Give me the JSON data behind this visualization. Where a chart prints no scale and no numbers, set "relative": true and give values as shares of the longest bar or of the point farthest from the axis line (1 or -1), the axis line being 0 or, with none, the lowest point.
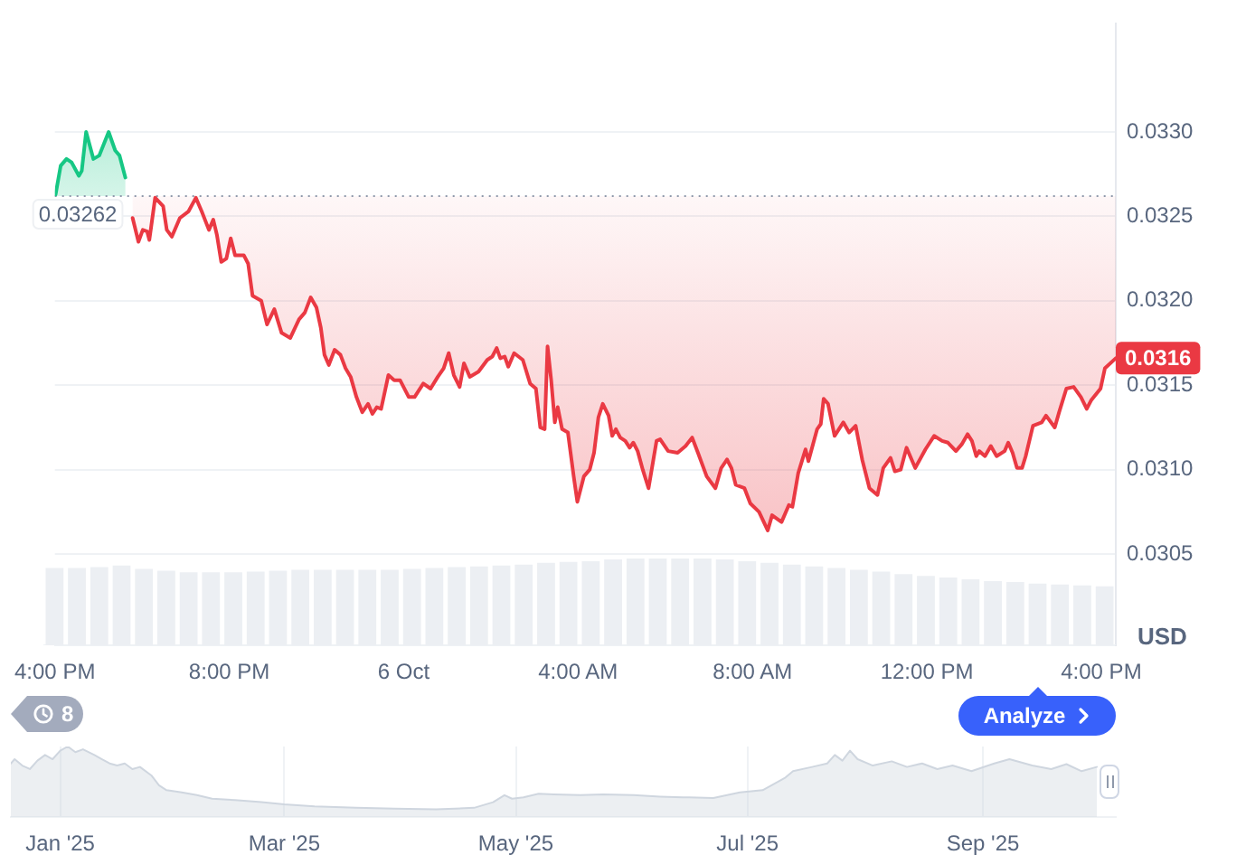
{
  "chart_data": [
    {
      "type": "line",
      "ylabel": "USD",
      "marker": "none",
      "grid": "y",
      "xlim": [
        "--10-05T16:00",
        "--10-06T16:20"
      ],
      "xticks": [
        {
          "value": "--10-05T16:00",
          "label": "4:00 PM"
        },
        {
          "value": "--10-05T20:00",
          "label": "8:00 PM"
        },
        {
          "value": "--10-06T00:00",
          "label": "6 Oct"
        },
        {
          "value": "--10-06T04:00",
          "label": "4:00 AM"
        },
        {
          "value": "--10-06T08:00",
          "label": "8:00 AM"
        },
        {
          "value": "--10-06T12:00",
          "label": "12:00 PM"
        },
        {
          "value": "--10-06T16:00",
          "label": "4:00 PM"
        }
      ],
      "ylim": [
        0.02996,
        0.03364
      ],
      "yticks": [
        0.0305,
        {
          "value": 0.031,
          "label": "0.0310"
        },
        0.0315,
        {
          "value": 0.032,
          "label": "0.0320"
        },
        0.0325,
        {
          "value": 0.033,
          "label": "0.0330"
        }
      ],
      "ref_lines": [
        {
          "axis": "y",
          "value": 0.03262,
          "label": "0.03262",
          "line_style": "dotted",
          "color": "#8f99ab"
        }
      ],
      "annotations": [
        {
          "text": "0.0316",
          "x": "--10-06T16:20",
          "y": 0.03166
        },
        "8",
        "Analyze"
      ],
      "series": [
        {
          "color": "#16c784",
          "x": [
            "--10-05T16:01",
            "--10-05T16:08",
            "--10-05T16:16",
            "--10-05T16:23",
            "--10-05T16:33",
            "--10-05T16:37",
            "--10-05T16:43",
            "--10-05T16:53",
            "--10-05T17:01",
            "--10-05T17:14",
            "--10-05T17:23",
            "--10-05T17:29",
            "--10-05T17:37"
          ],
          "values": [
            0.03263,
            0.0328,
            0.03284,
            0.03282,
            0.03274,
            0.03277,
            0.033,
            0.03284,
            0.03286,
            0.033,
            0.03289,
            0.03286,
            0.03273
          ],
          "upper": [
            0.03263,
            0.0328,
            0.03284,
            0.03282,
            0.03274,
            0.03277,
            0.033,
            0.03284,
            0.03286,
            0.033,
            0.03289,
            0.03286,
            0.03273
          ],
          "lower": [
            0.03262,
            0.03262,
            0.03262,
            0.03262,
            0.03262,
            0.03262,
            0.03262,
            0.03262,
            0.03262,
            0.03262,
            0.03262,
            0.03262,
            0.03262
          ]
        },
        {
          "color": "#ea3943",
          "x": [
            "--10-05T17:47",
            "--10-05T17:55",
            "--10-05T18:01",
            "--10-05T18:07",
            "--10-05T18:10",
            "--10-05T18:18",
            "--10-05T18:29",
            "--10-05T18:34",
            "--10-05T18:41",
            "--10-05T18:52",
            "--10-05T19:04",
            "--10-05T19:14",
            "--10-05T19:22",
            "--10-05T19:32",
            "--10-05T19:38",
            "--10-05T19:43",
            "--10-05T19:49",
            "--10-05T19:56",
            "--10-05T20:02",
            "--10-05T20:08",
            "--10-05T20:20",
            "--10-05T20:26",
            "--10-05T20:32",
            "--10-05T20:44",
            "--10-05T20:52",
            "--10-05T21:02",
            "--10-05T21:12",
            "--10-05T21:24",
            "--10-05T21:36",
            "--10-05T21:44",
            "--10-05T21:52",
            "--10-05T22:00",
            "--10-05T22:06",
            "--10-05T22:11",
            "--10-05T22:17",
            "--10-05T22:25",
            "--10-05T22:33",
            "--10-05T22:40",
            "--10-05T22:47",
            "--10-05T22:55",
            "--10-05T23:03",
            "--10-05T23:11",
            "--10-05T23:17",
            "--10-05T23:23",
            "--10-05T23:29",
            "--10-05T23:39",
            "--10-05T23:47",
            "--10-05T23:55",
            "--10-06T00:07",
            "--10-06T00:15",
            "--10-06T00:27",
            "--10-06T00:37",
            "--10-06T00:47",
            "--10-06T00:55",
            "--10-06T01:02",
            "--10-06T01:09",
            "--10-06T01:17",
            "--10-06T01:23",
            "--10-06T01:31",
            "--10-06T01:43",
            "--10-06T01:55",
            "--10-06T02:02",
            "--10-06T02:08",
            "--10-06T02:13",
            "--10-06T02:19",
            "--10-06T02:24",
            "--10-06T02:32",
            "--10-06T02:44",
            "--10-06T02:54",
            "--10-06T03:02",
            "--10-06T03:08",
            "--10-06T03:14",
            "--10-06T03:18",
            "--10-06T03:23",
            "--10-06T03:28",
            "--10-06T03:32",
            "--10-06T03:38",
            "--10-06T03:46",
            "--10-06T03:54",
            "--10-06T03:59",
            "--10-06T04:08",
            "--10-06T04:16",
            "--10-06T04:22",
            "--10-06T04:28",
            "--10-06T04:34",
            "--10-06T04:42",
            "--10-06T04:47",
            "--10-06T04:52",
            "--10-06T04:58",
            "--10-06T05:05",
            "--10-06T05:11",
            "--10-06T05:16",
            "--10-06T05:22",
            "--10-06T05:29",
            "--10-06T05:37",
            "--10-06T05:48",
            "--10-06T05:53",
            "--10-06T06:04",
            "--10-06T06:17",
            "--10-06T06:28",
            "--10-06T06:37",
            "--10-06T06:45",
            "--10-06T06:57",
            "--10-06T07:09",
            "--10-06T07:17",
            "--10-06T07:25",
            "--10-06T07:31",
            "--10-06T07:37",
            "--10-06T07:49",
            "--10-06T07:57",
            "--10-06T08:09",
            "--10-06T08:21",
            "--10-06T08:27",
            "--10-06T08:40",
            "--10-06T08:50",
            "--10-06T08:55",
            "--10-06T09:03",
            "--10-06T09:13",
            "--10-06T09:17",
            "--10-06T09:29",
            "--10-06T09:34",
            "--10-06T09:38",
            "--10-06T09:44",
            "--10-06T09:53",
            "--10-06T10:05",
            "--10-06T10:13",
            "--10-06T10:22",
            "--10-06T10:31",
            "--10-06T10:41",
            "--10-06T10:52",
            "--10-06T11:00",
            "--10-06T11:10",
            "--10-06T11:16",
            "--10-06T11:24",
            "--10-06T11:32",
            "--10-06T11:44",
            "--10-06T11:58",
            "--10-06T12:10",
            "--10-06T12:21",
            "--10-06T12:29",
            "--10-06T12:40",
            "--10-06T12:48",
            "--10-06T12:56",
            "--10-06T13:02",
            "--10-06T13:08",
            "--10-06T13:12",
            "--10-06T13:20",
            "--10-06T13:28",
            "--10-06T13:36",
            "--10-06T13:47",
            "--10-06T13:52",
            "--10-06T13:58",
            "--10-06T14:04",
            "--10-06T14:11",
            "--10-06T14:16",
            "--10-06T14:26",
            "--10-06T14:38",
            "--10-06T14:44",
            "--10-06T14:56",
            "--10-06T15:02",
            "--10-06T15:12",
            "--10-06T15:22",
            "--10-06T15:32",
            "--10-06T15:40",
            "--10-06T15:46",
            "--10-06T15:59",
            "--10-06T16:05",
            "--10-06T16:20"
          ],
          "values": [
            0.03249,
            0.03235,
            0.03242,
            0.03241,
            0.03236,
            0.03261,
            0.03256,
            0.03242,
            0.03238,
            0.03249,
            0.03253,
            0.03261,
            0.03253,
            0.03242,
            0.03248,
            0.03239,
            0.03223,
            0.03225,
            0.03237,
            0.03227,
            0.03227,
            0.03222,
            0.03203,
            0.032,
            0.03186,
            0.03195,
            0.03181,
            0.03178,
            0.03189,
            0.03193,
            0.03202,
            0.03196,
            0.03184,
            0.03168,
            0.03162,
            0.03171,
            0.03168,
            0.0316,
            0.03155,
            0.03143,
            0.03134,
            0.03139,
            0.03133,
            0.03137,
            0.03136,
            0.03156,
            0.03153,
            0.03153,
            0.03143,
            0.03143,
            0.03151,
            0.03148,
            0.03155,
            0.0316,
            0.03169,
            0.03156,
            0.03149,
            0.03163,
            0.03155,
            0.03158,
            0.03165,
            0.03167,
            0.03172,
            0.03166,
            0.03167,
            0.03161,
            0.03169,
            0.03165,
            0.03151,
            0.03148,
            0.03125,
            0.03124,
            0.03173,
            0.03153,
            0.03128,
            0.03137,
            0.03124,
            0.03122,
            0.03096,
            0.03081,
            0.03096,
            0.031,
            0.0311,
            0.03131,
            0.03139,
            0.03132,
            0.0312,
            0.03124,
            0.03119,
            0.03117,
            0.03113,
            0.03116,
            0.03111,
            0.031,
            0.03089,
            0.03117,
            0.03118,
            0.03111,
            0.0311,
            0.03114,
            0.03119,
            0.0311,
            0.03096,
            0.03089,
            0.03101,
            0.03106,
            0.03101,
            0.03091,
            0.03089,
            0.0308,
            0.03075,
            0.03064,
            0.03073,
            0.03069,
            0.03079,
            0.03078,
            0.03098,
            0.03112,
            0.03105,
            0.03124,
            0.03127,
            0.03142,
            0.03139,
            0.0312,
            0.03128,
            0.03122,
            0.03126,
            0.03106,
            0.03089,
            0.03085,
            0.03101,
            0.03107,
            0.03099,
            0.031,
            0.03113,
            0.03101,
            0.03112,
            0.0312,
            0.03117,
            0.03116,
            0.03111,
            0.03115,
            0.03121,
            0.03117,
            0.03108,
            0.03111,
            0.03108,
            0.03114,
            0.03108,
            0.03111,
            0.03116,
            0.0311,
            0.03101,
            0.03101,
            0.03108,
            0.03126,
            0.03128,
            0.03132,
            0.03125,
            0.03134,
            0.03148,
            0.03149,
            0.03143,
            0.03136,
            0.03141,
            0.03148,
            0.0316,
            0.03166
          ],
          "lower": [
            0.03249,
            0.03235,
            0.03242,
            0.03241,
            0.03236,
            0.03261,
            0.03256,
            0.03242,
            0.03238,
            0.03249,
            0.03253,
            0.03261,
            0.03253,
            0.03242,
            0.03248,
            0.03239,
            0.03223,
            0.03225,
            0.03237,
            0.03227,
            0.03227,
            0.03222,
            0.03203,
            0.032,
            0.03186,
            0.03195,
            0.03181,
            0.03178,
            0.03189,
            0.03193,
            0.03202,
            0.03196,
            0.03184,
            0.03168,
            0.03162,
            0.03171,
            0.03168,
            0.0316,
            0.03155,
            0.03143,
            0.03134,
            0.03139,
            0.03133,
            0.03137,
            0.03136,
            0.03156,
            0.03153,
            0.03153,
            0.03143,
            0.03143,
            0.03151,
            0.03148,
            0.03155,
            0.0316,
            0.03169,
            0.03156,
            0.03149,
            0.03163,
            0.03155,
            0.03158,
            0.03165,
            0.03167,
            0.03172,
            0.03166,
            0.03167,
            0.03161,
            0.03169,
            0.03165,
            0.03151,
            0.03148,
            0.03125,
            0.03124,
            0.03173,
            0.03153,
            0.03128,
            0.03137,
            0.03124,
            0.03122,
            0.03096,
            0.03081,
            0.03096,
            0.031,
            0.0311,
            0.03131,
            0.03139,
            0.03132,
            0.0312,
            0.03124,
            0.03119,
            0.03117,
            0.03113,
            0.03116,
            0.03111,
            0.031,
            0.03089,
            0.03117,
            0.03118,
            0.03111,
            0.0311,
            0.03114,
            0.03119,
            0.0311,
            0.03096,
            0.03089,
            0.03101,
            0.03106,
            0.03101,
            0.03091,
            0.03089,
            0.0308,
            0.03075,
            0.03064,
            0.03073,
            0.03069,
            0.03079,
            0.03078,
            0.03098,
            0.03112,
            0.03105,
            0.03124,
            0.03127,
            0.03142,
            0.03139,
            0.0312,
            0.03128,
            0.03122,
            0.03126,
            0.03106,
            0.03089,
            0.03085,
            0.03101,
            0.03107,
            0.03099,
            0.031,
            0.03113,
            0.03101,
            0.03112,
            0.0312,
            0.03117,
            0.03116,
            0.03111,
            0.03115,
            0.03121,
            0.03117,
            0.03108,
            0.03111,
            0.03108,
            0.03114,
            0.03108,
            0.03111,
            0.03116,
            0.0311,
            0.03101,
            0.03101,
            0.03108,
            0.03126,
            0.03128,
            0.03132,
            0.03125,
            0.03134,
            0.03148,
            0.03149,
            0.03143,
            0.03136,
            0.03141,
            0.03148,
            0.0316,
            0.03166
          ],
          "upper": [
            0.03262,
            0.03262,
            0.03262,
            0.03262,
            0.03262,
            0.03262,
            0.03262,
            0.03262,
            0.03262,
            0.03262,
            0.03262,
            0.03262,
            0.03262,
            0.03262,
            0.03262,
            0.03262,
            0.03262,
            0.03262,
            0.03262,
            0.03262,
            0.03262,
            0.03262,
            0.03262,
            0.03262,
            0.03262,
            0.03262,
            0.03262,
            0.03262,
            0.03262,
            0.03262,
            0.03262,
            0.03262,
            0.03262,
            0.03262,
            0.03262,
            0.03262,
            0.03262,
            0.03262,
            0.03262,
            0.03262,
            0.03262,
            0.03262,
            0.03262,
            0.03262,
            0.03262,
            0.03262,
            0.03262,
            0.03262,
            0.03262,
            0.03262,
            0.03262,
            0.03262,
            0.03262,
            0.03262,
            0.03262,
            0.03262,
            0.03262,
            0.03262,
            0.03262,
            0.03262,
            0.03262,
            0.03262,
            0.03262,
            0.03262,
            0.03262,
            0.03262,
            0.03262,
            0.03262,
            0.03262,
            0.03262,
            0.03262,
            0.03262,
            0.03262,
            0.03262,
            0.03262,
            0.03262,
            0.03262,
            0.03262,
            0.03262,
            0.03262,
            0.03262,
            0.03262,
            0.03262,
            0.03262,
            0.03262,
            0.03262,
            0.03262,
            0.03262,
            0.03262,
            0.03262,
            0.03262,
            0.03262,
            0.03262,
            0.03262,
            0.03262,
            0.03262,
            0.03262,
            0.03262,
            0.03262,
            0.03262,
            0.03262,
            0.03262,
            0.03262,
            0.03262,
            0.03262,
            0.03262,
            0.03262,
            0.03262,
            0.03262,
            0.03262,
            0.03262,
            0.03262,
            0.03262,
            0.03262,
            0.03262,
            0.03262,
            0.03262,
            0.03262,
            0.03262,
            0.03262,
            0.03262,
            0.03262,
            0.03262,
            0.03262,
            0.03262,
            0.03262,
            0.03262,
            0.03262,
            0.03262,
            0.03262,
            0.03262,
            0.03262,
            0.03262,
            0.03262,
            0.03262,
            0.03262,
            0.03262,
            0.03262,
            0.03262,
            0.03262,
            0.03262,
            0.03262,
            0.03262,
            0.03262,
            0.03262,
            0.03262,
            0.03262,
            0.03262,
            0.03262,
            0.03262,
            0.03262,
            0.03262,
            0.03262,
            0.03262,
            0.03262,
            0.03262,
            0.03262,
            0.03262,
            0.03262,
            0.03262,
            0.03262,
            0.03262,
            0.03262,
            0.03262,
            0.03262,
            0.03262,
            0.03262,
            0.03262
          ]
        }
      ]
    },
    {
      "type": "bar",
      "relative": true,
      "color": "#eceff3",
      "categories": [
        null,
        null,
        null,
        null,
        null,
        null,
        null,
        null,
        null,
        null,
        null,
        null,
        null,
        null,
        null,
        null,
        null,
        null,
        null,
        null,
        null,
        null,
        null,
        null,
        null,
        null,
        null,
        null,
        null,
        null,
        null,
        null,
        null,
        null,
        null,
        null,
        null,
        null,
        null,
        null,
        null,
        null,
        null,
        null,
        null,
        null,
        null,
        null
      ],
      "values": [
        0.89,
        0.89,
        0.9,
        0.92,
        0.88,
        0.86,
        0.84,
        0.84,
        0.84,
        0.85,
        0.86,
        0.87,
        0.87,
        0.87,
        0.87,
        0.87,
        0.88,
        0.89,
        0.9,
        0.91,
        0.92,
        0.93,
        0.95,
        0.96,
        0.97,
        0.99,
        1,
        1,
        1,
        1,
        0.99,
        0.97,
        0.95,
        0.93,
        0.91,
        0.89,
        0.87,
        0.85,
        0.82,
        0.8,
        0.78,
        0.76,
        0.74,
        0.73,
        0.71,
        0.7,
        0.69,
        0.68
      ]
    },
    {
      "type": "area",
      "relative": true,
      "color": "#cfd6df",
      "grid": "x",
      "xlim": [
        "2024-12-19",
        "2025-10-06"
      ],
      "xticks": [
        {
          "value": "2025-01-01",
          "label": "Jan '25"
        },
        {
          "value": "2025-03-01",
          "label": "Mar '25"
        },
        {
          "value": "2025-05-01",
          "label": "May '25"
        },
        {
          "value": "2025-07-01",
          "label": "Jul '25"
        },
        {
          "value": "2025-09-01",
          "label": "Sep '25"
        }
      ],
      "x": [
        "2024-12-19",
        "2024-12-20",
        "2024-12-22",
        "2024-12-24",
        "2024-12-26",
        "2024-12-28",
        "2024-12-30",
        "2025-01-01",
        "2025-01-03",
        "2025-01-05",
        "2025-01-07",
        "2025-01-10",
        "2025-01-12",
        "2025-01-14",
        "2025-01-16",
        "2025-01-18",
        "2025-01-20",
        "2025-01-22",
        "2025-01-25",
        "2025-01-27",
        "2025-01-29",
        "2025-02-02",
        "2025-02-06",
        "2025-02-10",
        "2025-02-16",
        "2025-02-23",
        "2025-03-01",
        "2025-03-09",
        "2025-03-20",
        "2025-03-30",
        "2025-04-10",
        "2025-04-20",
        "2025-04-25",
        "2025-04-28",
        "2025-04-30",
        "2025-05-03",
        "2025-05-07",
        "2025-05-11",
        "2025-05-18",
        "2025-05-24",
        "2025-06-01",
        "2025-06-08",
        "2025-06-14",
        "2025-06-22",
        "2025-06-29",
        "2025-07-05",
        "2025-07-11",
        "2025-07-13",
        "2025-07-18",
        "2025-07-22",
        "2025-07-24",
        "2025-07-26",
        "2025-07-28",
        "2025-07-30",
        "2025-08-03",
        "2025-08-08",
        "2025-08-12",
        "2025-08-16",
        "2025-08-20",
        "2025-08-24",
        "2025-08-29",
        "2025-09-04",
        "2025-09-08",
        "2025-09-14",
        "2025-09-19",
        "2025-09-23",
        "2025-09-27",
        "2025-10-01"
      ],
      "values": [
        0.76,
        0.82,
        0.73,
        0.68,
        0.8,
        0.88,
        0.82,
        0.94,
        1,
        0.92,
        0.96,
        0.88,
        0.82,
        0.76,
        0.73,
        0.76,
        0.68,
        0.71,
        0.59,
        0.45,
        0.38,
        0.35,
        0.31,
        0.26,
        0.24,
        0.21,
        0.18,
        0.15,
        0.13,
        0.12,
        0.11,
        0.13,
        0.21,
        0.31,
        0.26,
        0.28,
        0.33,
        0.32,
        0.31,
        0.32,
        0.31,
        0.29,
        0.28,
        0.27,
        0.35,
        0.38,
        0.56,
        0.65,
        0.71,
        0.76,
        0.88,
        0.8,
        0.94,
        0.82,
        0.73,
        0.79,
        0.71,
        0.76,
        0.68,
        0.73,
        0.65,
        0.76,
        0.82,
        0.73,
        0.68,
        0.75,
        0.65,
        0.71
      ]
    }
  ]
}
